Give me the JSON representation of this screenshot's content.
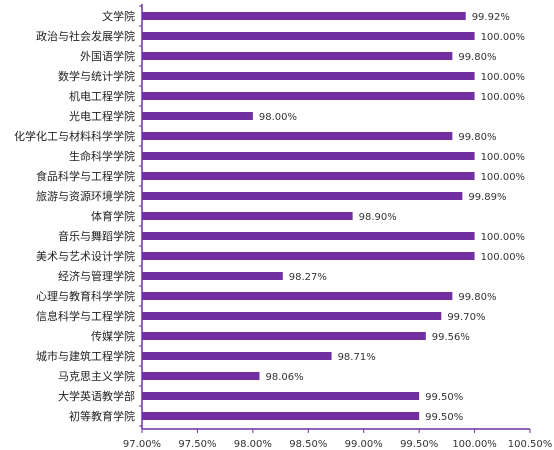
{
  "chart_data": {
    "type": "bar",
    "orientation": "horizontal",
    "categories": [
      "文学院",
      "政治与社会发展学院",
      "外国语学院",
      "数学与统计学院",
      "机电工程学院",
      "光电工程学院",
      "化学化工与材料科学学院",
      "生命科学学院",
      "食品科学与工程学院",
      "旅游与资源环境学院",
      "体育学院",
      "音乐与舞蹈学院",
      "美术与艺术设计学院",
      "经济与管理学院",
      "心理与教育科学学院",
      "信息科学与工程学院",
      "传媒学院",
      "城市与建筑工程学院",
      "马克思主义学院",
      "大学英语教学部",
      "初等教育学院"
    ],
    "values": [
      99.92,
      100.0,
      99.8,
      100.0,
      100.0,
      98.0,
      99.8,
      100.0,
      100.0,
      99.89,
      98.9,
      100.0,
      100.0,
      98.27,
      99.8,
      99.7,
      99.56,
      98.71,
      98.06,
      99.5,
      99.5
    ],
    "value_labels": [
      "99.92%",
      "100.00%",
      "99.80%",
      "100.00%",
      "100.00%",
      "98.00%",
      "99.80%",
      "100.00%",
      "100.00%",
      "99.89%",
      "98.90%",
      "100.00%",
      "100.00%",
      "98.27%",
      "99.80%",
      "99.70%",
      "99.56%",
      "98.71%",
      "98.06%",
      "99.50%",
      "99.50%"
    ],
    "xlim": [
      97.0,
      100.5
    ],
    "xticks": [
      97.0,
      97.5,
      98.0,
      98.5,
      99.0,
      99.5,
      100.0,
      100.5
    ],
    "xtick_labels": [
      "97.00%",
      "97.50%",
      "98.00%",
      "98.50%",
      "99.00%",
      "99.50%",
      "100.00%",
      "100.50%"
    ],
    "title": "",
    "xlabel": "",
    "ylabel": "",
    "grid": false,
    "legend": "none",
    "bar_color": "#7030a0",
    "axis_color": "#7030a0"
  }
}
